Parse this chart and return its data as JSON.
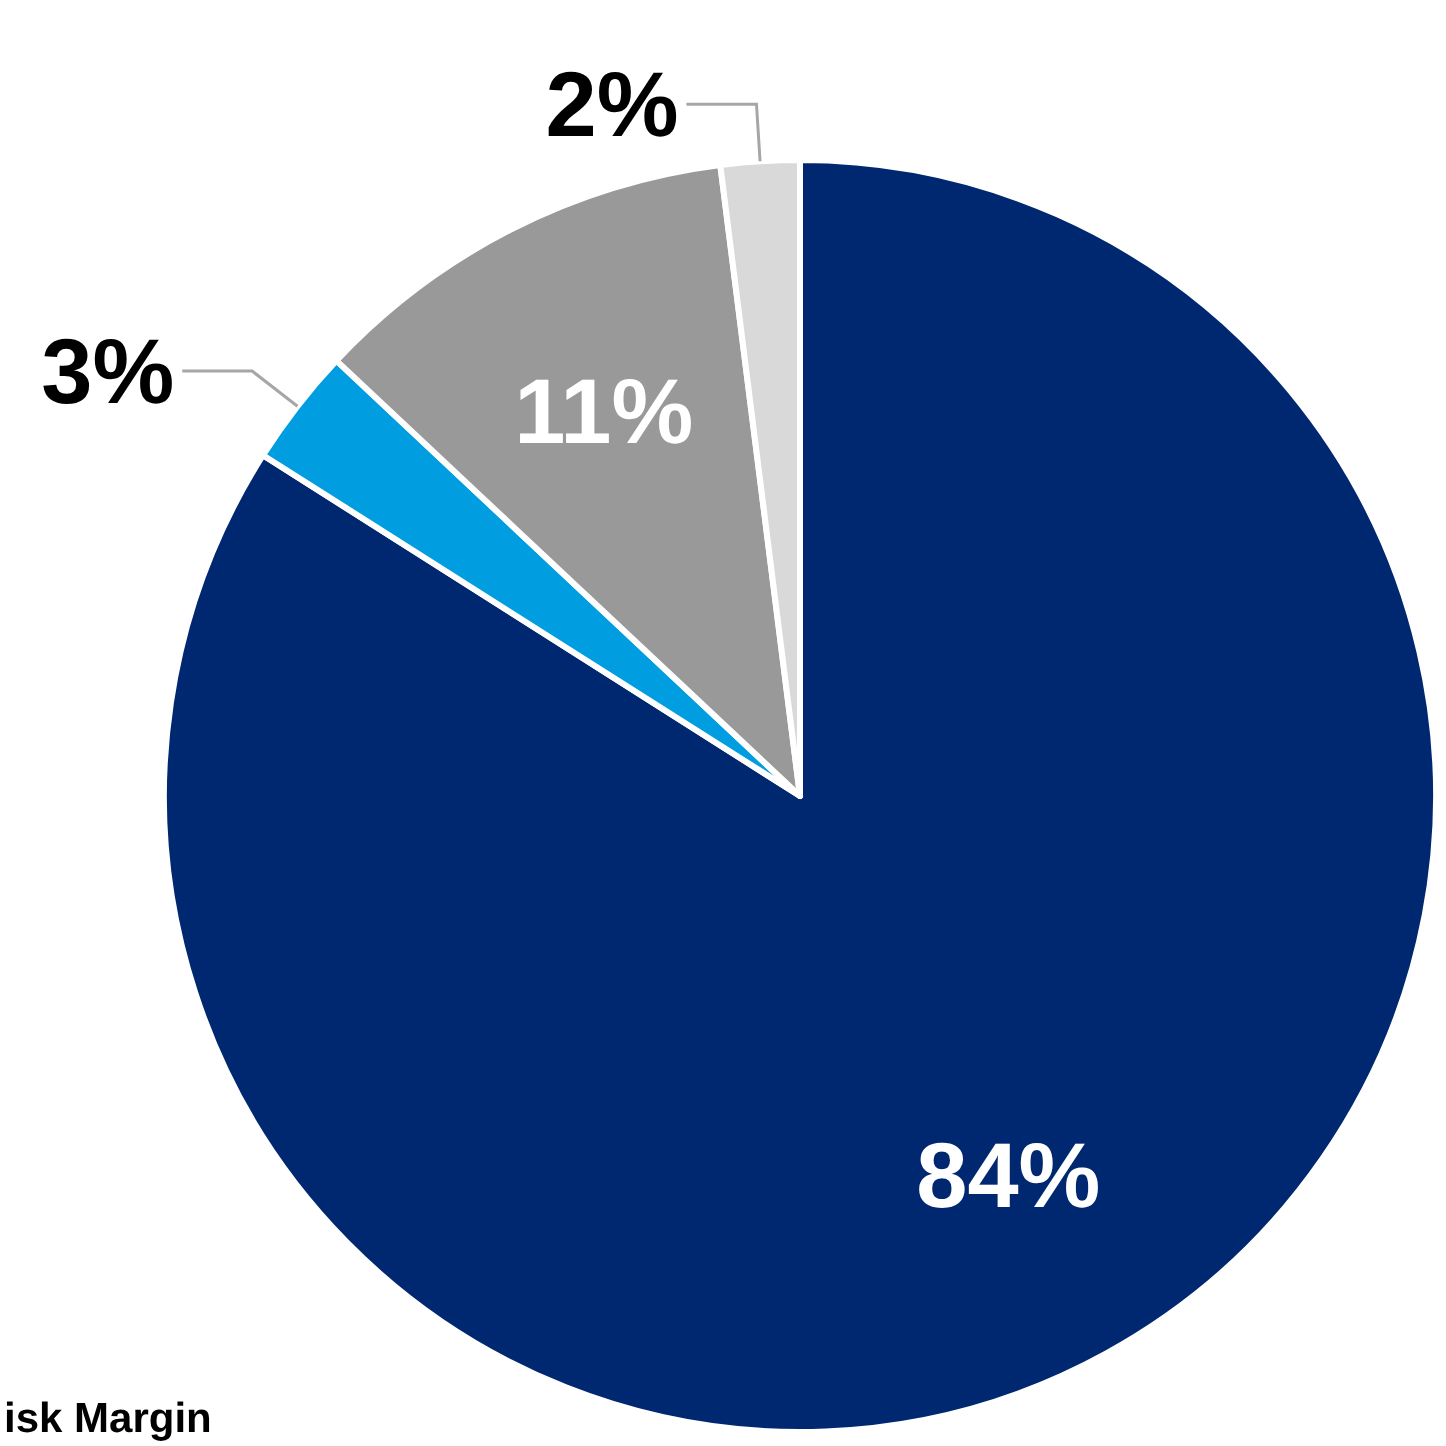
{
  "chart_data": {
    "type": "pie",
    "categories": [
      null,
      null,
      null,
      null
    ],
    "values": [
      84,
      3,
      11,
      2
    ],
    "colors": [
      "#002870",
      "#009ee0",
      "#999999",
      "#d9d9d9"
    ],
    "value_labels": [
      "84%",
      "3%",
      "11%",
      "2%"
    ],
    "annotations": [
      "isk Margin"
    ]
  }
}
